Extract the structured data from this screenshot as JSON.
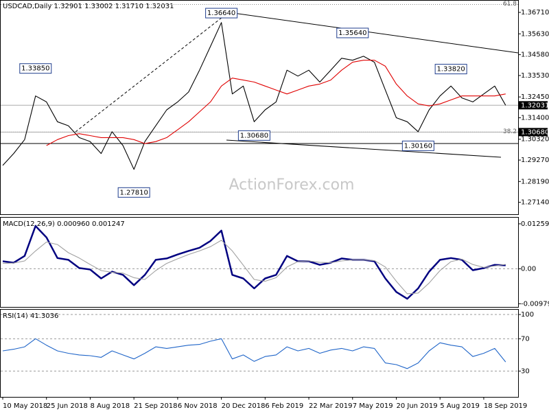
{
  "chart_data": [
    {
      "type": "line",
      "title": "USDCAD,Daily  1.32901 1.33002 1.31710 1.32031",
      "watermark": "ActionForex.com",
      "categories": [
        "10 May 2018",
        null,
        null,
        null,
        "25 Jun 2018",
        null,
        null,
        null,
        "8 Aug 2018",
        null,
        null,
        null,
        "21 Sep 2018",
        null,
        null,
        null,
        "6 Nov 2018",
        null,
        null,
        null,
        "20 Dec 2018",
        null,
        null,
        null,
        "6 Feb 2019",
        null,
        null,
        null,
        "22 Mar 2019",
        null,
        null,
        null,
        "7 May 2019",
        null,
        null,
        null,
        "20 Jun 2019",
        null,
        null,
        null,
        "5 Aug 2019",
        null,
        null,
        null,
        "18 Sep 2019",
        null,
        null
      ],
      "series": [
        {
          "color": "#000000",
          "values": [
            1.29,
            1.296,
            1.303,
            1.325,
            1.322,
            1.312,
            1.31,
            1.304,
            1.302,
            1.296,
            1.307,
            1.3,
            1.288,
            1.302,
            1.31,
            1.318,
            1.322,
            1.327,
            1.338,
            1.35,
            1.362,
            1.326,
            1.33,
            1.312,
            1.318,
            1.322,
            1.338,
            1.335,
            1.338,
            1.332,
            1.338,
            1.344,
            1.343,
            1.345,
            1.342,
            1.328,
            1.314,
            1.312,
            1.307,
            1.318,
            1.325,
            1.33,
            1.324,
            1.322,
            1.326,
            1.33,
            1.32031
          ]
        },
        {
          "color": "#e00000",
          "values": [
            null,
            null,
            null,
            null,
            1.3,
            1.303,
            1.305,
            1.306,
            1.305,
            1.304,
            1.304,
            1.304,
            1.303,
            1.301,
            1.302,
            1.304,
            1.308,
            1.312,
            1.317,
            1.322,
            1.33,
            1.334,
            1.333,
            1.332,
            1.33,
            1.328,
            1.326,
            1.328,
            1.33,
            1.331,
            1.333,
            1.338,
            1.342,
            1.343,
            1.343,
            1.34,
            1.331,
            1.325,
            1.321,
            1.32,
            1.321,
            1.323,
            1.325,
            1.325,
            1.325,
            1.325,
            1.326
          ]
        }
      ],
      "ylim": [
        1.2654,
        1.373
      ],
      "yticks": [
        {
          "value": 1.3671,
          "label": "1.36710"
        },
        {
          "value": 1.3563,
          "label": "1.35630"
        },
        {
          "value": 1.3458,
          "label": "1.34580"
        },
        {
          "value": 1.3353,
          "label": "1.33530"
        },
        {
          "value": 1.3245,
          "label": "1.32450"
        },
        {
          "value": 1.314,
          "label": "1.31400"
        },
        {
          "value": 1.3032,
          "label": "1.30320"
        },
        {
          "value": 1.2927,
          "label": "1.29270"
        },
        {
          "value": 1.2819,
          "label": "1.28190"
        },
        {
          "value": 1.2714,
          "label": "1.27140"
        }
      ],
      "price_markers": [
        {
          "value": 1.32031,
          "label": "1.32031"
        },
        {
          "value": 1.3068,
          "label": "1.30680"
        }
      ],
      "fib_levels": [
        {
          "value": 1.3711,
          "label": "61.8"
        },
        {
          "value": 1.3068,
          "label": "38.2"
        }
      ],
      "annotations": [
        {
          "index": 20,
          "value": 1.3664,
          "label": "1.36640"
        },
        {
          "index": 32,
          "value": 1.3564,
          "label": "1.35640"
        },
        {
          "index": 3,
          "value": 1.3385,
          "label": "1.33850"
        },
        {
          "index": 41,
          "value": 1.3382,
          "label": "1.33820"
        },
        {
          "index": 23,
          "value": 1.3068,
          "label": "1.30680"
        },
        {
          "index": 38,
          "value": 1.3016,
          "label": "1.30160"
        },
        {
          "index": 12,
          "value": 1.2781,
          "label": "1.27810"
        }
      ]
    },
    {
      "type": "line",
      "title": "MACD(12,26,9) 0.000960 0.001247",
      "series": [
        {
          "color": "#000080",
          "values": [
            0.0021,
            0.0017,
            0.0036,
            0.012,
            0.0088,
            0.003,
            0.0025,
            0.0002,
            -0.0002,
            -0.0027,
            -0.0008,
            -0.0017,
            -0.0046,
            -0.0017,
            0.0025,
            0.0029,
            0.004,
            0.005,
            0.0059,
            0.0078,
            0.0107,
            -0.0017,
            -0.0027,
            -0.0055,
            -0.0027,
            -0.0017,
            0.0036,
            0.0021,
            0.0021,
            0.0011,
            0.0017,
            0.0029,
            0.0025,
            0.0025,
            0.0021,
            -0.0027,
            -0.0065,
            -0.0084,
            -0.0055,
            -0.0008,
            0.0025,
            0.003,
            0.0025,
            -0.0004,
            0.0002,
            0.0011,
            0.00096
          ]
        },
        {
          "color": "#a0a0a0",
          "values": [
            0.0015,
            0.0016,
            0.0022,
            0.005,
            0.0075,
            0.0068,
            0.0045,
            0.003,
            0.0012,
            -0.0005,
            -0.001,
            -0.0012,
            -0.0025,
            -0.003,
            -0.0005,
            0.0015,
            0.0028,
            0.004,
            0.005,
            0.0062,
            0.008,
            0.005,
            0.001,
            -0.003,
            -0.0035,
            -0.0025,
            0.0005,
            0.002,
            0.0022,
            0.0018,
            0.0017,
            0.0022,
            0.0025,
            0.0025,
            0.0023,
            0.0005,
            -0.0035,
            -0.007,
            -0.0068,
            -0.004,
            -0.0005,
            0.002,
            0.0027,
            0.0012,
            0.0004,
            0.0008,
            0.001247
          ]
        }
      ],
      "ylim": [
        -0.01069,
        0.01432
      ],
      "yticks": [
        {
          "value": 0.012599,
          "label": "0.012599"
        },
        {
          "value": 0,
          "label": "0.00"
        },
        {
          "value": -0.00979,
          "label": "-0.00979"
        }
      ]
    },
    {
      "type": "line",
      "title": "RSI(14) 41.3036",
      "series": [
        {
          "color": "#1e64c8",
          "values": [
            55,
            57,
            60,
            70,
            62,
            55,
            52,
            50,
            49,
            47,
            55,
            50,
            45,
            52,
            60,
            58,
            60,
            62,
            63,
            67,
            70,
            45,
            50,
            42,
            48,
            50,
            60,
            55,
            58,
            52,
            56,
            58,
            55,
            60,
            58,
            40,
            38,
            33,
            40,
            55,
            65,
            62,
            60,
            48,
            52,
            58,
            41.3036
          ]
        }
      ],
      "ylim": [
        -2,
        106
      ],
      "yticks": [
        100,
        70,
        30
      ]
    }
  ]
}
